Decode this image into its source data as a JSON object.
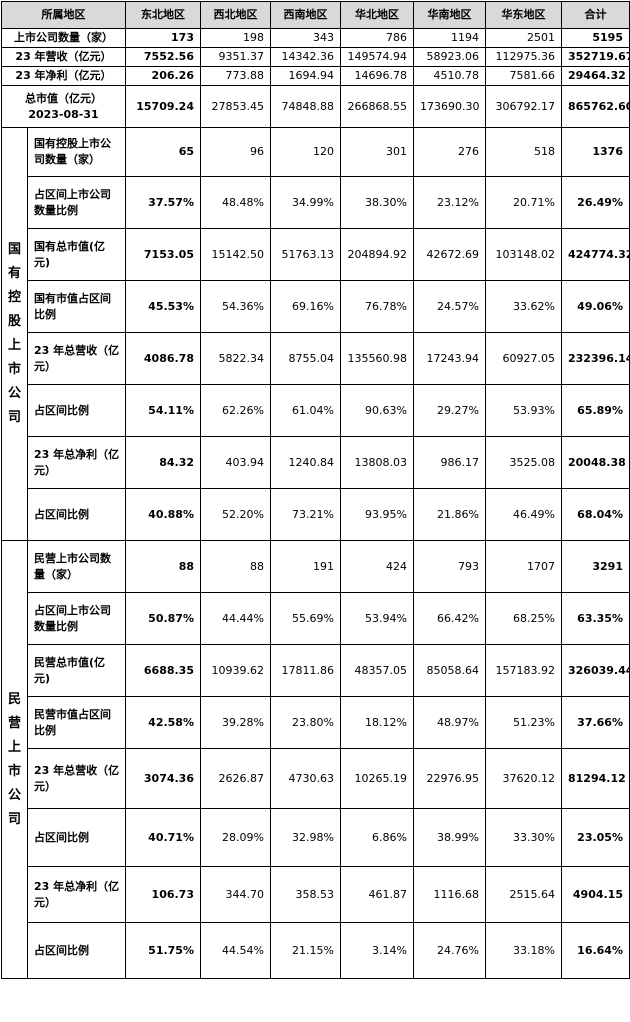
{
  "header": {
    "label": "所属地区",
    "regions": [
      "东北地区",
      "西北地区",
      "西南地区",
      "华北地区",
      "华南地区",
      "华东地区"
    ],
    "total": "合计"
  },
  "summary_rows": [
    {
      "label": "上市公司数量（家）",
      "values": [
        "173",
        "198",
        "343",
        "786",
        "1194",
        "2501"
      ],
      "total": "5195"
    },
    {
      "label": "23 年营收（亿元）",
      "values": [
        "7552.56",
        "9351.37",
        "14342.36",
        "149574.94",
        "58923.06",
        "112975.36"
      ],
      "total": "352719.67"
    },
    {
      "label": "23 年净利（亿元）",
      "values": [
        "206.26",
        "773.88",
        "1694.94",
        "14696.78",
        "4510.78",
        "7581.66"
      ],
      "total": "29464.32"
    },
    {
      "label": "总市值（亿元）",
      "label2": "2023-08-31",
      "values": [
        "15709.24",
        "27853.45",
        "74848.88",
        "266868.55",
        "173690.30",
        "306792.17"
      ],
      "total": "865762.60"
    }
  ],
  "groups": [
    {
      "name": "国有控股上市公司",
      "rows": [
        {
          "label": "国有控股上市公司数量（家）",
          "values": [
            "65",
            "96",
            "120",
            "301",
            "276",
            "518"
          ],
          "total": "1376"
        },
        {
          "label": "占区间上市公司数量比例",
          "values": [
            "37.57%",
            "48.48%",
            "34.99%",
            "38.30%",
            "23.12%",
            "20.71%"
          ],
          "total": "26.49%"
        },
        {
          "label": "国有总市值(亿元)",
          "values": [
            "7153.05",
            "15142.50",
            "51763.13",
            "204894.92",
            "42672.69",
            "103148.02"
          ],
          "total": "424774.32"
        },
        {
          "label": "国有市值占区间比例",
          "values": [
            "45.53%",
            "54.36%",
            "69.16%",
            "76.78%",
            "24.57%",
            "33.62%"
          ],
          "total": "49.06%"
        },
        {
          "label": "23 年总营收（亿元）",
          "values": [
            "4086.78",
            "5822.34",
            "8755.04",
            "135560.98",
            "17243.94",
            "60927.05"
          ],
          "total": "232396.14"
        },
        {
          "label": "占区间比例",
          "values": [
            "54.11%",
            "62.26%",
            "61.04%",
            "90.63%",
            "29.27%",
            "53.93%"
          ],
          "total": "65.89%"
        },
        {
          "label": "23 年总净利（亿元）",
          "values": [
            "84.32",
            "403.94",
            "1240.84",
            "13808.03",
            "986.17",
            "3525.08"
          ],
          "total": "20048.38"
        },
        {
          "label": "占区间比例",
          "values": [
            "40.88%",
            "52.20%",
            "73.21%",
            "93.95%",
            "21.86%",
            "46.49%"
          ],
          "total": "68.04%"
        }
      ]
    },
    {
      "name": "民营上市公司",
      "rows": [
        {
          "label": "民营上市公司数量（家）",
          "values": [
            "88",
            "88",
            "191",
            "424",
            "793",
            "1707"
          ],
          "total": "3291"
        },
        {
          "label": "占区间上市公司数量比例",
          "values": [
            "50.87%",
            "44.44%",
            "55.69%",
            "53.94%",
            "66.42%",
            "68.25%"
          ],
          "total": "63.35%"
        },
        {
          "label": "民营总市值(亿元)",
          "values": [
            "6688.35",
            "10939.62",
            "17811.86",
            "48357.05",
            "85058.64",
            "157183.92"
          ],
          "total": "326039.44"
        },
        {
          "label": "民营市值占区间比例",
          "values": [
            "42.58%",
            "39.28%",
            "23.80%",
            "18.12%",
            "48.97%",
            "51.23%"
          ],
          "total": "37.66%"
        },
        {
          "label": "23 年总营收（亿元）",
          "values": [
            "3074.36",
            "2626.87",
            "4730.63",
            "10265.19",
            "22976.95",
            "37620.12"
          ],
          "total": "81294.12"
        },
        {
          "label": "占区间比例",
          "values": [
            "40.71%",
            "28.09%",
            "32.98%",
            "6.86%",
            "38.99%",
            "33.30%"
          ],
          "total": "23.05%"
        },
        {
          "label": "23 年总净利（亿元）",
          "values": [
            "106.73",
            "344.70",
            "358.53",
            "461.87",
            "1116.68",
            "2515.64"
          ],
          "total": "4904.15"
        },
        {
          "label": "占区间比例",
          "values": [
            "51.75%",
            "44.54%",
            "21.15%",
            "3.14%",
            "24.76%",
            "33.18%"
          ],
          "total": "16.64%"
        }
      ]
    }
  ]
}
